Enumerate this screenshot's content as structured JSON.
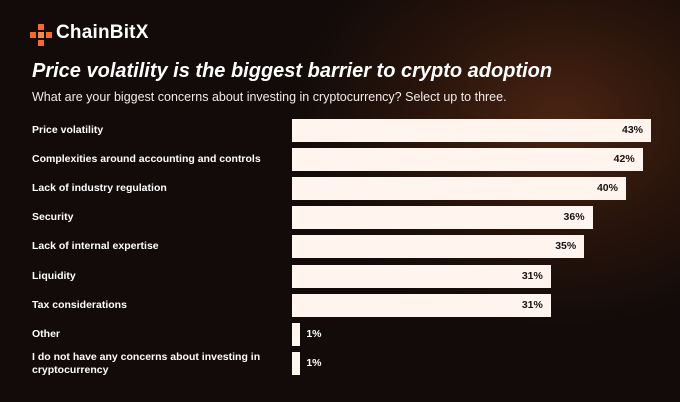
{
  "brand": "ChainBitX",
  "chart_data": {
    "type": "bar",
    "orientation": "horizontal",
    "title": "Price volatility is the biggest barrier to crypto adoption",
    "subtitle": "What are your biggest concerns about investing in cryptocurrency? Select up to three.",
    "categories": [
      "Price volatility",
      "Complexities around accounting and controls",
      "Lack of industry regulation",
      "Security",
      "Lack of internal expertise",
      "Liquidity",
      "Tax considerations",
      "Other",
      "I do not have any concerns about investing in cryptocurrency"
    ],
    "values": [
      43,
      42,
      40,
      36,
      35,
      31,
      31,
      1,
      1
    ],
    "value_labels": [
      "43%",
      "42%",
      "40%",
      "36%",
      "35%",
      "31%",
      "31%",
      "1%",
      "1%"
    ],
    "color": "#fff4ee"
  }
}
